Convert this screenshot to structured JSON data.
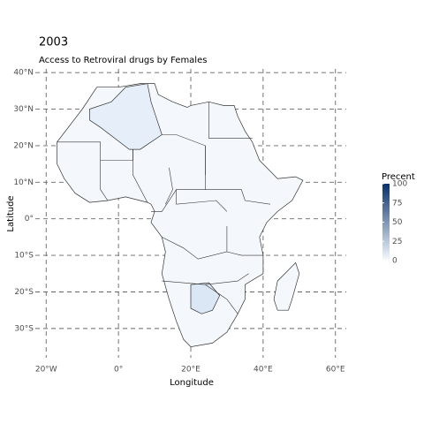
{
  "chart_data": {
    "type": "choropleth",
    "title": "2003",
    "subtitle": "Access to Retroviral drugs by Females",
    "xlabel": "Longitude",
    "ylabel": "Latitude",
    "xlim": [
      -23,
      63
    ],
    "ylim": [
      -38,
      41
    ],
    "xticks": [
      {
        "value": -20,
        "label": "20°W"
      },
      {
        "value": 0,
        "label": "0°"
      },
      {
        "value": 20,
        "label": "20°E"
      },
      {
        "value": 40,
        "label": "40°E"
      },
      {
        "value": 60,
        "label": "60°E"
      }
    ],
    "yticks": [
      {
        "value": 40,
        "label": "40°N"
      },
      {
        "value": 30,
        "label": "30°N"
      },
      {
        "value": 20,
        "label": "20°N"
      },
      {
        "value": 10,
        "label": "10°N"
      },
      {
        "value": 0,
        "label": "0°"
      },
      {
        "value": -10,
        "label": "10°S"
      },
      {
        "value": -20,
        "label": "20°S"
      },
      {
        "value": -30,
        "label": "30°S"
      }
    ],
    "grid": true,
    "legend": {
      "title": "Precent",
      "lim": [
        0,
        100
      ],
      "ticks": [
        0,
        25,
        50,
        75,
        100
      ],
      "colors": [
        "#f7fbff",
        "#08306b"
      ]
    }
  }
}
